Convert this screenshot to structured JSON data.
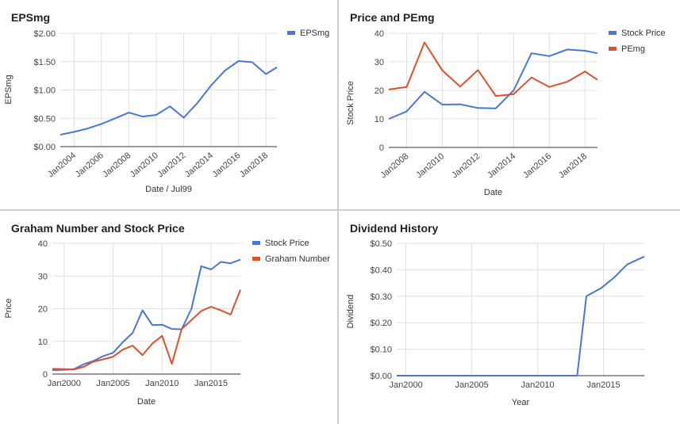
{
  "chart_data": [
    {
      "type": "line",
      "title": "EPSmg",
      "xlabel": "Date / Jul99",
      "ylabel": "EPSmg",
      "x_ticks": [
        "Jan2004",
        "Jan2006",
        "Jan2008",
        "Jan2010",
        "Jan2012",
        "Jan2014",
        "Jan2016",
        "Jan2018"
      ],
      "x_tick_values": [
        2004,
        2006,
        2008,
        2010,
        2012,
        2014,
        2016,
        2018
      ],
      "y_ticks": [
        "$0.00",
        "$0.50",
        "$1.00",
        "$1.50",
        "$2.00"
      ],
      "y_tick_values": [
        0,
        0.5,
        1,
        1.5,
        2
      ],
      "xlim": [
        2003,
        2018.8
      ],
      "ylim": [
        0,
        2
      ],
      "legend_position": "top-right",
      "series": [
        {
          "name": "EPSmg",
          "color": "#4a76d6",
          "x": [
            2003,
            2004,
            2005,
            2006,
            2007,
            2008,
            2009,
            2010,
            2011,
            2012,
            2013,
            2014,
            2015,
            2016,
            2017,
            2018,
            2018.8
          ],
          "y": [
            0.21,
            0.26,
            0.32,
            0.4,
            0.5,
            0.6,
            0.53,
            0.56,
            0.71,
            0.51,
            0.77,
            1.08,
            1.34,
            1.51,
            1.49,
            1.28,
            1.4
          ]
        }
      ]
    },
    {
      "type": "line",
      "title": "Price and PEmg",
      "xlabel": "Date",
      "ylabel": "Stock Price",
      "x_ticks": [
        "Jan2008",
        "Jan2010",
        "Jan2012",
        "Jan2014",
        "Jan2016",
        "Jan2018"
      ],
      "x_tick_values": [
        2008,
        2010,
        2012,
        2014,
        2016,
        2018
      ],
      "y_ticks": [
        "0",
        "10",
        "20",
        "30",
        "40"
      ],
      "y_tick_values": [
        0,
        10,
        20,
        30,
        40
      ],
      "xlim": [
        2007,
        2018.7
      ],
      "ylim": [
        0,
        40
      ],
      "legend_position": "top-right",
      "series": [
        {
          "name": "Stock Price",
          "color": "#4a76d6",
          "x": [
            2007,
            2008,
            2009,
            2010,
            2011,
            2012,
            2013,
            2014,
            2015,
            2016,
            2017,
            2018,
            2018.7
          ],
          "y": [
            10,
            12.6,
            19.5,
            15,
            15.1,
            13.8,
            13.7,
            20,
            33,
            32,
            34.3,
            33.9,
            33
          ]
        },
        {
          "name": "PEmg",
          "color": "#e0502b",
          "x": [
            2007,
            2008,
            2009,
            2010,
            2011,
            2012,
            2013,
            2014,
            2015,
            2016,
            2017,
            2018,
            2018.7
          ],
          "y": [
            20.3,
            21.2,
            36.8,
            27,
            21.3,
            27.1,
            18,
            18.7,
            24.5,
            21.2,
            23,
            26.6,
            23.7
          ]
        }
      ]
    },
    {
      "type": "line",
      "title": "Graham Number and Stock Price",
      "xlabel": "Date",
      "ylabel": "Price",
      "x_ticks": [
        "Jan2000",
        "Jan2005",
        "Jan2010",
        "Jan2015"
      ],
      "x_tick_values": [
        2000,
        2005,
        2010,
        2015
      ],
      "y_ticks": [
        "0",
        "10",
        "20",
        "30",
        "40"
      ],
      "y_tick_values": [
        0,
        10,
        20,
        30,
        40
      ],
      "xlim": [
        1998.8,
        2018
      ],
      "ylim": [
        0,
        40
      ],
      "legend_position": "top-right",
      "series": [
        {
          "name": "Stock Price",
          "color": "#4a76d6",
          "x": [
            1998.8,
            2000,
            2001,
            2002,
            2003,
            2004,
            2005,
            2006,
            2007,
            2008,
            2009,
            2010,
            2011,
            2012,
            2013,
            2014,
            2015,
            2016,
            2017,
            2018
          ],
          "y": [
            1.2,
            1.3,
            1.5,
            3,
            4,
            5.5,
            6.5,
            9.8,
            12.6,
            19.5,
            15,
            15.1,
            13.8,
            13.7,
            20,
            33,
            32,
            34.3,
            33.9,
            35
          ]
        },
        {
          "name": "Graham Number",
          "color": "#e0502b",
          "x": [
            1998.8,
            2000,
            2001,
            2002,
            2003,
            2004,
            2005,
            2006,
            2007,
            2008,
            2009,
            2010,
            2011,
            2012,
            2013,
            2014,
            2015,
            2016,
            2017,
            2018
          ],
          "y": [
            1.6,
            1.5,
            1.4,
            2.2,
            3.8,
            4.5,
            5.3,
            7.5,
            8.7,
            5.8,
            9.3,
            11.7,
            3.1,
            13.8,
            16.5,
            19.3,
            20.6,
            19.5,
            18.2,
            25.8
          ]
        }
      ]
    },
    {
      "type": "line",
      "title": "Dividend History",
      "xlabel": "Year",
      "ylabel": "Dividend",
      "x_ticks": [
        "Jan2000",
        "Jan2005",
        "Jan2010",
        "Jan2015"
      ],
      "x_tick_values": [
        2000,
        2005,
        2010,
        2015
      ],
      "y_ticks": [
        "$0.00",
        "$0.10",
        "$0.20",
        "$0.30",
        "$0.40",
        "$0.50"
      ],
      "y_tick_values": [
        0,
        0.1,
        0.2,
        0.3,
        0.4,
        0.5
      ],
      "xlim": [
        1999.3,
        2018.1
      ],
      "ylim": [
        0,
        0.5
      ],
      "series": [
        {
          "name": "",
          "color": "#4a76d6",
          "x": [
            1999.3,
            2013,
            2013.7,
            2014.8,
            2015.8,
            2016.8,
            2018.1
          ],
          "y": [
            0,
            0,
            0.3,
            0.33,
            0.37,
            0.42,
            0.45
          ]
        }
      ]
    }
  ]
}
